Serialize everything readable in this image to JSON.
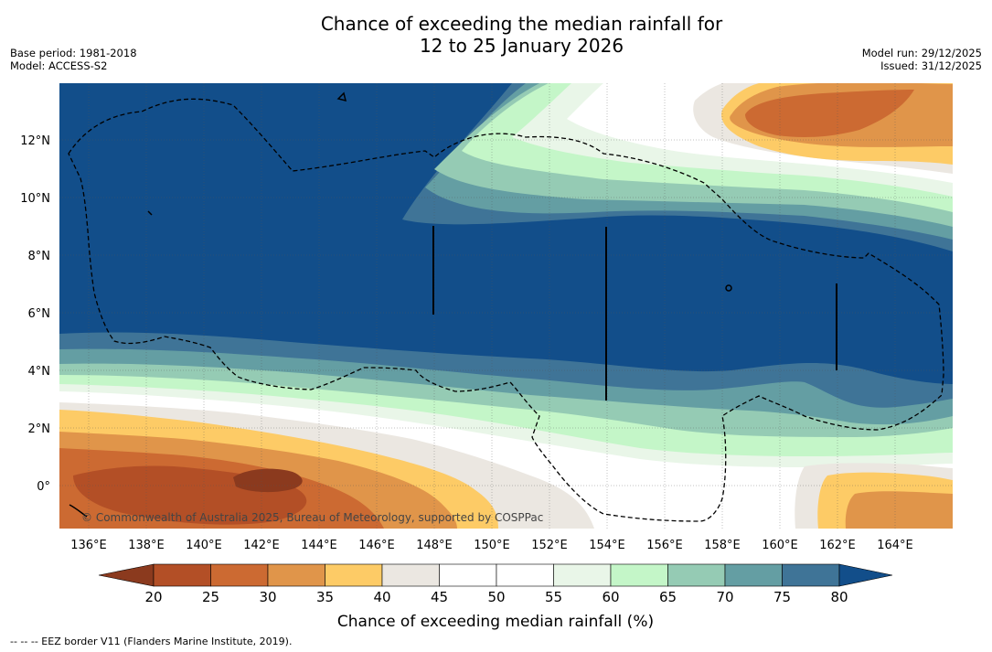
{
  "header": {
    "title_line1": "Chance of exceeding the median rainfall for",
    "title_line2": "12 to 25 January 2026",
    "base_period": "Base period: 1981-2018",
    "model": "Model: ACCESS-S2",
    "model_run": "Model run: 29/12/2025",
    "issued": "Issued: 31/12/2025"
  },
  "map": {
    "lon_labels": [
      "136°E",
      "138°E",
      "140°E",
      "142°E",
      "144°E",
      "146°E",
      "148°E",
      "150°E",
      "152°E",
      "154°E",
      "156°E",
      "158°E",
      "160°E",
      "162°E",
      "164°E"
    ],
    "lat_labels": [
      "12°N",
      "10°N",
      "8°N",
      "6°N",
      "4°N",
      "2°N",
      "0°"
    ],
    "copyright": "© Commonwealth of Australia 2025, Bureau of Meteorology, supported by COSPPac",
    "palette": [
      "#8b3a1e",
      "#b34f26",
      "#cc6a32",
      "#e0954a",
      "#fdcb66",
      "#ebe7e1",
      "#ffffff",
      "#ffffff",
      "#e9f6e8",
      "#c4f6c8",
      "#95cbb4",
      "#649ea3",
      "#3f7497",
      "#124e8a"
    ]
  },
  "colorbar": {
    "ticks": [
      "20",
      "25",
      "30",
      "35",
      "40",
      "45",
      "50",
      "55",
      "60",
      "65",
      "70",
      "75",
      "80"
    ],
    "label": "Chance of exceeding median rainfall (%)"
  },
  "footer": {
    "legend_note": "--  --  -- EEZ border V11 (Flanders Marine Institute, 2019)."
  }
}
